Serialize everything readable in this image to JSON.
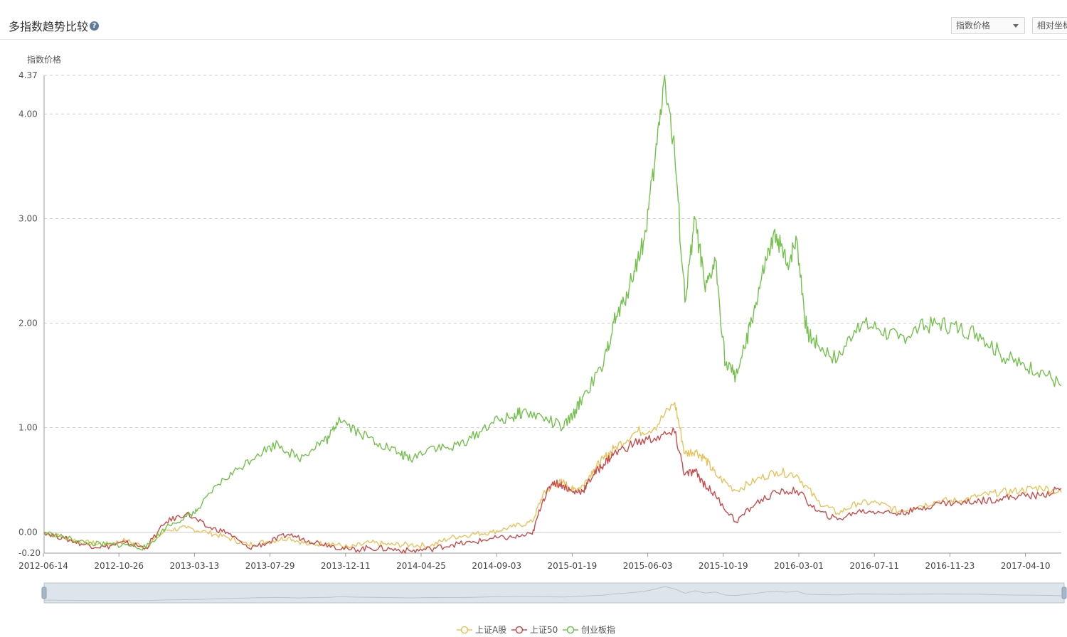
{
  "header": {
    "title": "多指数趋势比较",
    "help": "?",
    "select_value": "指数价格",
    "relative_button": "相对坐标"
  },
  "colors": {
    "sh_a": "#e8c35b",
    "sz50": "#c94b4b",
    "cyb": "#72c24c",
    "grid": "#cccccc",
    "axis": "#999999",
    "zoom_fill": "#dde4ec"
  },
  "chart_data": {
    "type": "line",
    "ylabel": "指数价格",
    "ylim": [
      -0.2,
      4.37
    ],
    "yticks": [
      "4.37",
      "4.00",
      "3.00",
      "2.00",
      "1.00",
      "0.00",
      "-0.20"
    ],
    "yvalues": [
      4.37,
      4.0,
      3.0,
      2.0,
      1.0,
      0.0,
      -0.2
    ],
    "xlim": [
      0,
      100
    ],
    "xticks": [
      "2012-06-14",
      "2012-10-26",
      "2013-03-13",
      "2013-07-29",
      "2013-12-11",
      "2014-04-25",
      "2014-09-03",
      "2015-01-19",
      "2015-06-03",
      "2015-10-19",
      "2016-03-01",
      "2016-07-11",
      "2016-11-23",
      "2017-04-10"
    ],
    "legend_position": "bottom-center",
    "series": [
      {
        "name": "上证A股",
        "color_key": "sh_a",
        "x": [
          0,
          2,
          4,
          6,
          8,
          10,
          12,
          14,
          16,
          18,
          20,
          22,
          24,
          26,
          28,
          30,
          32,
          34,
          36,
          38,
          40,
          42,
          44,
          46,
          48,
          49,
          50,
          51,
          52,
          53,
          54,
          55,
          56,
          58,
          60,
          62,
          63,
          64,
          65,
          66,
          68,
          70,
          72,
          74,
          76,
          78,
          80,
          82,
          84,
          86,
          88,
          90,
          92,
          94,
          96,
          98,
          100
        ],
        "y": [
          0.0,
          -0.05,
          -0.1,
          -0.12,
          -0.08,
          -0.14,
          0.02,
          0.04,
          0.0,
          -0.05,
          -0.12,
          -0.09,
          -0.05,
          -0.12,
          -0.1,
          -0.15,
          -0.1,
          -0.12,
          -0.12,
          -0.13,
          -0.05,
          -0.02,
          0.0,
          0.05,
          0.1,
          0.35,
          0.45,
          0.48,
          0.4,
          0.45,
          0.6,
          0.7,
          0.8,
          0.95,
          1.0,
          1.24,
          0.75,
          0.78,
          0.7,
          0.55,
          0.4,
          0.5,
          0.58,
          0.55,
          0.3,
          0.18,
          0.28,
          0.28,
          0.2,
          0.25,
          0.3,
          0.3,
          0.35,
          0.38,
          0.4,
          0.43,
          0.38
        ]
      },
      {
        "name": "上证50",
        "color_key": "sz50",
        "x": [
          0,
          2,
          4,
          6,
          8,
          10,
          12,
          14,
          16,
          18,
          20,
          22,
          24,
          26,
          28,
          30,
          32,
          34,
          36,
          38,
          40,
          42,
          44,
          46,
          48,
          49,
          50,
          51,
          52,
          53,
          54,
          55,
          56,
          58,
          60,
          62,
          63,
          64,
          65,
          66,
          68,
          70,
          72,
          74,
          76,
          78,
          80,
          82,
          84,
          86,
          88,
          90,
          92,
          94,
          96,
          98,
          100
        ],
        "y": [
          0.0,
          -0.06,
          -0.12,
          -0.14,
          -0.1,
          -0.15,
          0.1,
          0.18,
          0.05,
          0.0,
          -0.15,
          -0.1,
          -0.02,
          -0.08,
          -0.12,
          -0.17,
          -0.15,
          -0.16,
          -0.18,
          -0.16,
          -0.12,
          -0.1,
          -0.06,
          -0.05,
          -0.02,
          0.3,
          0.48,
          0.45,
          0.38,
          0.4,
          0.55,
          0.65,
          0.75,
          0.85,
          0.9,
          0.95,
          0.55,
          0.58,
          0.45,
          0.35,
          0.1,
          0.28,
          0.38,
          0.4,
          0.2,
          0.12,
          0.2,
          0.2,
          0.18,
          0.22,
          0.28,
          0.28,
          0.3,
          0.32,
          0.35,
          0.35,
          0.42
        ]
      },
      {
        "name": "创业板指",
        "color_key": "cyb",
        "x": [
          0,
          2,
          4,
          6,
          8,
          10,
          12,
          14,
          15,
          17,
          19,
          21,
          23,
          25,
          27,
          28,
          29,
          31,
          33,
          35,
          36,
          38,
          40,
          42,
          44,
          46,
          47,
          49,
          51,
          52,
          53,
          55,
          56,
          57,
          58,
          59,
          60,
          61,
          62,
          63,
          64,
          65,
          66,
          67,
          68,
          69,
          70,
          71,
          72,
          73,
          74,
          75,
          76,
          78,
          80,
          82,
          84,
          86,
          88,
          90,
          92,
          94,
          96,
          98,
          100
        ],
        "y": [
          0.0,
          -0.05,
          -0.1,
          -0.12,
          -0.12,
          -0.15,
          0.05,
          0.15,
          0.2,
          0.45,
          0.6,
          0.75,
          0.85,
          0.7,
          0.85,
          0.9,
          1.1,
          0.95,
          0.85,
          0.75,
          0.7,
          0.82,
          0.8,
          0.9,
          1.05,
          1.1,
          1.15,
          1.1,
          1.0,
          1.12,
          1.3,
          1.6,
          2.0,
          2.2,
          2.5,
          2.8,
          3.5,
          4.37,
          3.6,
          2.2,
          3.0,
          2.3,
          2.6,
          1.6,
          1.5,
          1.8,
          2.2,
          2.6,
          2.85,
          2.55,
          2.8,
          1.9,
          1.8,
          1.65,
          2.0,
          1.95,
          1.85,
          1.95,
          2.0,
          1.95,
          1.9,
          1.7,
          1.6,
          1.55,
          1.4
        ]
      }
    ]
  }
}
